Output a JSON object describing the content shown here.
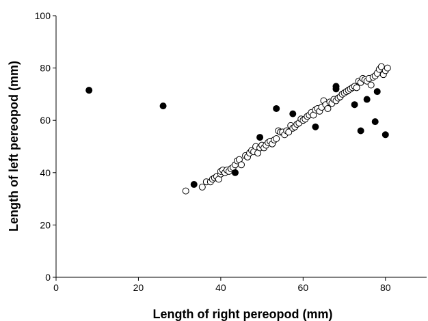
{
  "chart_data": {
    "type": "scatter",
    "title": "",
    "xlabel": "Length of right pereopod (mm)",
    "ylabel": "Length of left pereopod (mm)",
    "xlim": [
      0,
      90
    ],
    "ylim": [
      0,
      100
    ],
    "xticks": [
      0,
      20,
      40,
      60,
      80
    ],
    "yticks": [
      0,
      20,
      40,
      60,
      80,
      100
    ],
    "grid": false,
    "legend": "none",
    "series": [
      {
        "marker": "open-circle",
        "color": "#000000",
        "fill": "#ffffff",
        "points": [
          [
            31.5,
            33.0
          ],
          [
            35.5,
            34.5
          ],
          [
            36.5,
            36.5
          ],
          [
            37.5,
            36.5
          ],
          [
            38.0,
            37.5
          ],
          [
            38.5,
            38.0
          ],
          [
            39.0,
            38.5
          ],
          [
            39.5,
            37.5
          ],
          [
            40.0,
            39.5
          ],
          [
            40.0,
            40.5
          ],
          [
            40.5,
            41.0
          ],
          [
            41.0,
            40.0
          ],
          [
            41.5,
            41.0
          ],
          [
            42.0,
            40.5
          ],
          [
            42.5,
            41.5
          ],
          [
            43.0,
            42.0
          ],
          [
            43.5,
            43.0
          ],
          [
            44.0,
            44.5
          ],
          [
            44.5,
            45.0
          ],
          [
            45.0,
            43.0
          ],
          [
            46.0,
            46.5
          ],
          [
            46.5,
            46.0
          ],
          [
            47.0,
            47.5
          ],
          [
            47.5,
            48.5
          ],
          [
            48.0,
            48.0
          ],
          [
            48.5,
            50.0
          ],
          [
            49.0,
            47.5
          ],
          [
            49.5,
            49.5
          ],
          [
            50.0,
            50.5
          ],
          [
            50.5,
            49.5
          ],
          [
            51.0,
            50.5
          ],
          [
            51.5,
            51.5
          ],
          [
            52.0,
            52.0
          ],
          [
            52.5,
            51.0
          ],
          [
            53.0,
            52.5
          ],
          [
            53.5,
            53.0
          ],
          [
            54.0,
            56.0
          ],
          [
            54.5,
            55.5
          ],
          [
            55.0,
            55.5
          ],
          [
            55.5,
            54.5
          ],
          [
            56.0,
            56.0
          ],
          [
            56.5,
            55.5
          ],
          [
            57.0,
            58.0
          ],
          [
            57.5,
            57.0
          ],
          [
            58.0,
            57.5
          ],
          [
            58.5,
            58.5
          ],
          [
            59.0,
            59.0
          ],
          [
            59.5,
            60.5
          ],
          [
            60.0,
            60.0
          ],
          [
            60.5,
            60.5
          ],
          [
            61.0,
            61.5
          ],
          [
            61.5,
            62.0
          ],
          [
            62.0,
            63.0
          ],
          [
            62.5,
            62.0
          ],
          [
            63.0,
            64.0
          ],
          [
            63.5,
            64.5
          ],
          [
            64.0,
            63.5
          ],
          [
            64.5,
            65.0
          ],
          [
            65.0,
            67.5
          ],
          [
            65.5,
            66.0
          ],
          [
            66.0,
            64.5
          ],
          [
            66.5,
            67.0
          ],
          [
            67.0,
            66.5
          ],
          [
            67.5,
            68.0
          ],
          [
            68.0,
            67.5
          ],
          [
            68.5,
            68.5
          ],
          [
            69.0,
            69.0
          ],
          [
            69.5,
            70.0
          ],
          [
            70.0,
            70.5
          ],
          [
            70.5,
            71.0
          ],
          [
            71.0,
            71.5
          ],
          [
            71.5,
            72.0
          ],
          [
            72.0,
            72.5
          ],
          [
            72.5,
            73.0
          ],
          [
            73.0,
            72.5
          ],
          [
            73.5,
            75.0
          ],
          [
            74.0,
            74.5
          ],
          [
            74.5,
            76.0
          ],
          [
            75.0,
            75.5
          ],
          [
            75.5,
            75.0
          ],
          [
            76.0,
            76.0
          ],
          [
            76.5,
            73.5
          ],
          [
            77.0,
            76.5
          ],
          [
            77.5,
            77.0
          ],
          [
            78.0,
            78.0
          ],
          [
            78.5,
            79.5
          ],
          [
            79.0,
            80.5
          ],
          [
            79.5,
            77.5
          ],
          [
            80.0,
            79.0
          ],
          [
            80.5,
            80.0
          ]
        ]
      },
      {
        "marker": "filled-circle",
        "color": "#000000",
        "fill": "#000000",
        "points": [
          [
            8,
            71.5
          ],
          [
            26,
            65.5
          ],
          [
            33.5,
            35.5
          ],
          [
            43.5,
            40.0
          ],
          [
            49.5,
            53.5
          ],
          [
            53.5,
            64.5
          ],
          [
            57.5,
            62.5
          ],
          [
            63.0,
            57.5
          ],
          [
            68.0,
            73.0
          ],
          [
            68.0,
            72.0
          ],
          [
            72.5,
            66.0
          ],
          [
            74.0,
            56.0
          ],
          [
            75.5,
            68.0
          ],
          [
            77.5,
            59.5
          ],
          [
            78.0,
            71.0
          ],
          [
            80.0,
            54.5
          ]
        ]
      }
    ]
  }
}
